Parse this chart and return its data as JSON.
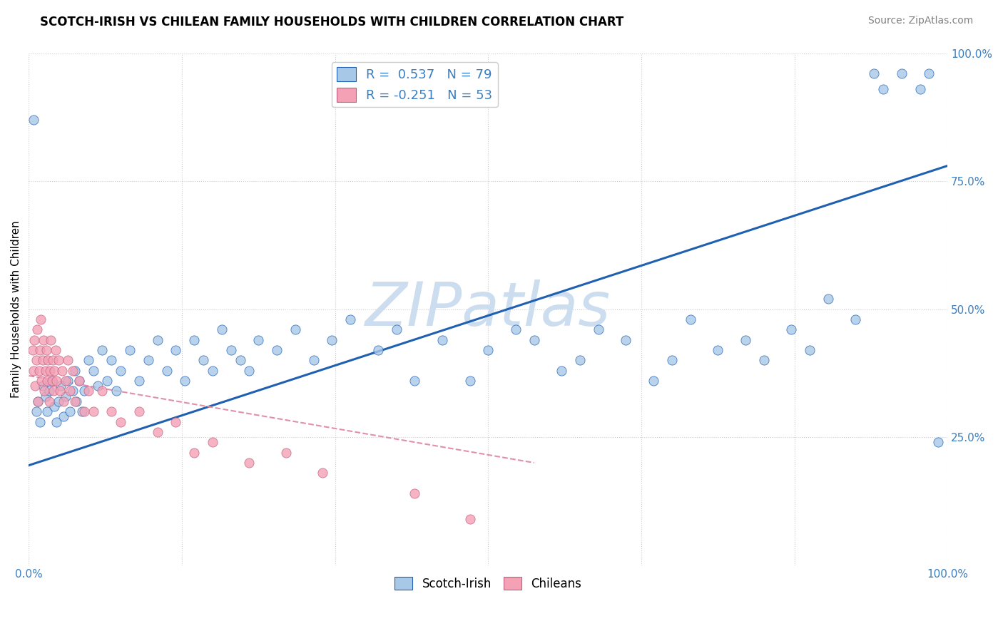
{
  "title": "SCOTCH-IRISH VS CHILEAN FAMILY HOUSEHOLDS WITH CHILDREN CORRELATION CHART",
  "source": "Source: ZipAtlas.com",
  "ylabel": "Family Households with Children",
  "watermark": "ZIPatlas",
  "legend_blue_r": "0.537",
  "legend_blue_n": "79",
  "legend_pink_r": "-0.251",
  "legend_pink_n": "53",
  "blue_color": "#a8c8e8",
  "pink_color": "#f4a0b5",
  "blue_line_color": "#2060b0",
  "pink_line_color": "#e090a8",
  "xlim": [
    0,
    1
  ],
  "ylim": [
    0,
    1
  ],
  "grid_color": "#cccccc",
  "background_color": "#ffffff",
  "watermark_color": "#ccddf0",
  "title_fontsize": 12,
  "source_fontsize": 10,
  "label_fontsize": 11,
  "tick_fontsize": 11,
  "blue_scatter_x": [
    0.005,
    0.008,
    0.01,
    0.012,
    0.015,
    0.018,
    0.02,
    0.022,
    0.025,
    0.028,
    0.03,
    0.032,
    0.035,
    0.038,
    0.04,
    0.042,
    0.045,
    0.048,
    0.05,
    0.052,
    0.055,
    0.058,
    0.06,
    0.065,
    0.07,
    0.075,
    0.08,
    0.085,
    0.09,
    0.095,
    0.1,
    0.11,
    0.12,
    0.13,
    0.14,
    0.15,
    0.16,
    0.17,
    0.18,
    0.19,
    0.2,
    0.21,
    0.22,
    0.23,
    0.24,
    0.25,
    0.27,
    0.29,
    0.31,
    0.33,
    0.35,
    0.38,
    0.4,
    0.42,
    0.45,
    0.48,
    0.5,
    0.53,
    0.55,
    0.58,
    0.6,
    0.62,
    0.65,
    0.68,
    0.7,
    0.72,
    0.75,
    0.78,
    0.8,
    0.83,
    0.85,
    0.87,
    0.9,
    0.92,
    0.93,
    0.95,
    0.97,
    0.98,
    0.99
  ],
  "blue_scatter_y": [
    0.87,
    0.3,
    0.32,
    0.28,
    0.35,
    0.33,
    0.3,
    0.34,
    0.36,
    0.31,
    0.28,
    0.32,
    0.35,
    0.29,
    0.33,
    0.36,
    0.3,
    0.34,
    0.38,
    0.32,
    0.36,
    0.3,
    0.34,
    0.4,
    0.38,
    0.35,
    0.42,
    0.36,
    0.4,
    0.34,
    0.38,
    0.42,
    0.36,
    0.4,
    0.44,
    0.38,
    0.42,
    0.36,
    0.44,
    0.4,
    0.38,
    0.46,
    0.42,
    0.4,
    0.38,
    0.44,
    0.42,
    0.46,
    0.4,
    0.44,
    0.48,
    0.42,
    0.46,
    0.36,
    0.44,
    0.36,
    0.42,
    0.46,
    0.44,
    0.38,
    0.4,
    0.46,
    0.44,
    0.36,
    0.4,
    0.48,
    0.42,
    0.44,
    0.4,
    0.46,
    0.42,
    0.52,
    0.48,
    0.96,
    0.93,
    0.96,
    0.93,
    0.96,
    0.24
  ],
  "pink_scatter_x": [
    0.004,
    0.005,
    0.006,
    0.007,
    0.008,
    0.009,
    0.01,
    0.011,
    0.012,
    0.013,
    0.014,
    0.015,
    0.016,
    0.017,
    0.018,
    0.019,
    0.02,
    0.021,
    0.022,
    0.023,
    0.024,
    0.025,
    0.026,
    0.027,
    0.028,
    0.029,
    0.03,
    0.032,
    0.034,
    0.036,
    0.038,
    0.04,
    0.042,
    0.045,
    0.048,
    0.05,
    0.055,
    0.06,
    0.065,
    0.07,
    0.08,
    0.09,
    0.1,
    0.12,
    0.14,
    0.16,
    0.18,
    0.2,
    0.24,
    0.28,
    0.32,
    0.42,
    0.48
  ],
  "pink_scatter_y": [
    0.42,
    0.38,
    0.44,
    0.35,
    0.4,
    0.46,
    0.32,
    0.38,
    0.42,
    0.48,
    0.36,
    0.4,
    0.44,
    0.34,
    0.38,
    0.42,
    0.36,
    0.4,
    0.32,
    0.38,
    0.44,
    0.36,
    0.4,
    0.34,
    0.38,
    0.42,
    0.36,
    0.4,
    0.34,
    0.38,
    0.32,
    0.36,
    0.4,
    0.34,
    0.38,
    0.32,
    0.36,
    0.3,
    0.34,
    0.3,
    0.34,
    0.3,
    0.28,
    0.3,
    0.26,
    0.28,
    0.22,
    0.24,
    0.2,
    0.22,
    0.18,
    0.14,
    0.09
  ],
  "blue_line_x": [
    0.0,
    1.0
  ],
  "blue_line_y": [
    0.195,
    0.78
  ],
  "pink_line_x": [
    0.0,
    0.55
  ],
  "pink_line_y": [
    0.37,
    0.2
  ]
}
